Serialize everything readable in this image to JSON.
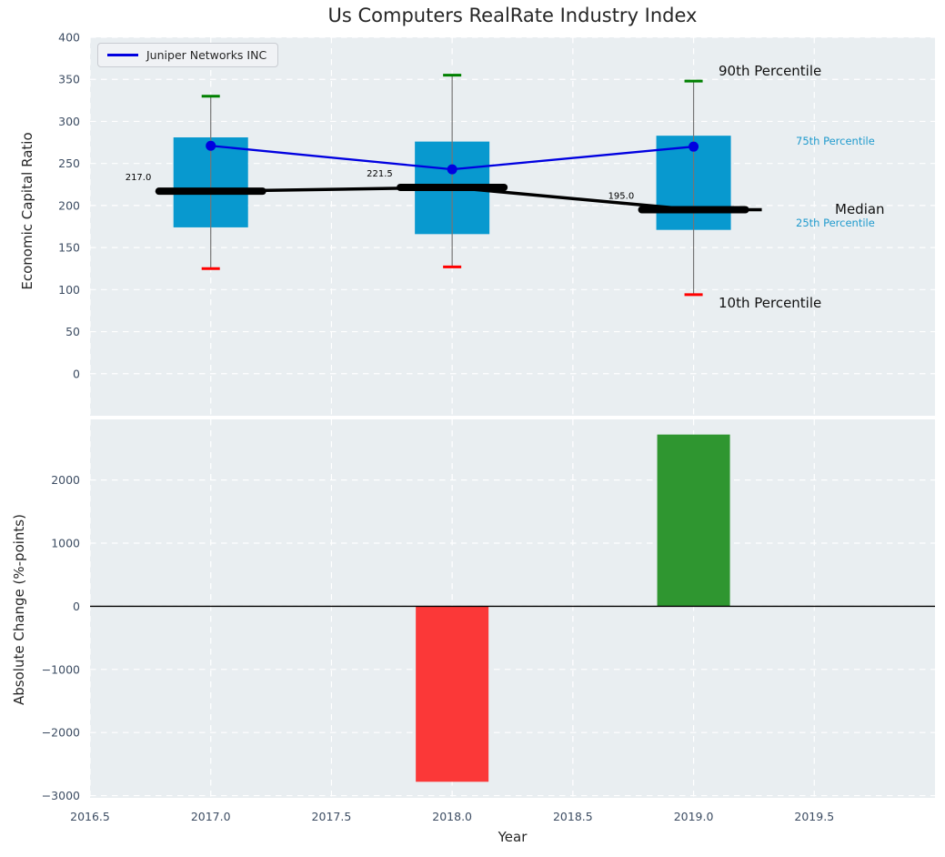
{
  "title": "Us Computers RealRate Industry Index",
  "legend": {
    "label": "Juniper Networks INC"
  },
  "annotations": {
    "p90": "90th Percentile",
    "p75": "75th Percentile",
    "median": "Median",
    "p25": "25th Percentile",
    "p10": "10th Percentile"
  },
  "colors": {
    "plot_bg": "#e9eef1",
    "grid": "#ffffff",
    "tick_text": "#3d4d63",
    "box_fill": "#0899cf",
    "whisker": "#757575",
    "cap_high": "#008000",
    "cap_low": "#ff0000",
    "median_line": "#000000",
    "juniper_line": "#0000e0",
    "bar_positive": "#2f9630",
    "bar_negative": "#fb3838",
    "cyan_text": "#1f9acd",
    "zero_line": "#000000"
  },
  "chart_data": [
    {
      "type": "box",
      "title": "Us Computers RealRate Industry Index",
      "ylabel": "Economic Capital Ratio",
      "x": [
        2017,
        2018,
        2019
      ],
      "p90": [
        330,
        355,
        348
      ],
      "p75": [
        281,
        276,
        283
      ],
      "median": [
        217.0,
        221.5,
        195.0
      ],
      "p25": [
        174,
        166,
        171
      ],
      "p10": [
        125,
        127,
        94
      ],
      "series": [
        {
          "name": "Juniper Networks INC",
          "values": [
            271,
            243,
            270
          ]
        }
      ],
      "yticks": [
        0,
        50,
        100,
        150,
        200,
        250,
        300,
        350,
        400
      ],
      "ylim": [
        -50,
        400
      ],
      "grid": true,
      "legend_position": "upper left"
    },
    {
      "type": "bar",
      "ylabel": "Absolute Change (%-points)",
      "xlabel": "Year",
      "x": [
        2018,
        2019
      ],
      "values": [
        -2780,
        2720
      ],
      "yticks": [
        -3000,
        -2000,
        -1000,
        0,
        1000,
        2000
      ],
      "ylim": [
        -3035,
        2960
      ],
      "xticks": [
        2016.5,
        2017.0,
        2017.5,
        2018.0,
        2018.5,
        2019.0,
        2019.5
      ],
      "xlim": [
        2016.5,
        2020.0
      ],
      "zero_line": true,
      "grid": true
    }
  ]
}
